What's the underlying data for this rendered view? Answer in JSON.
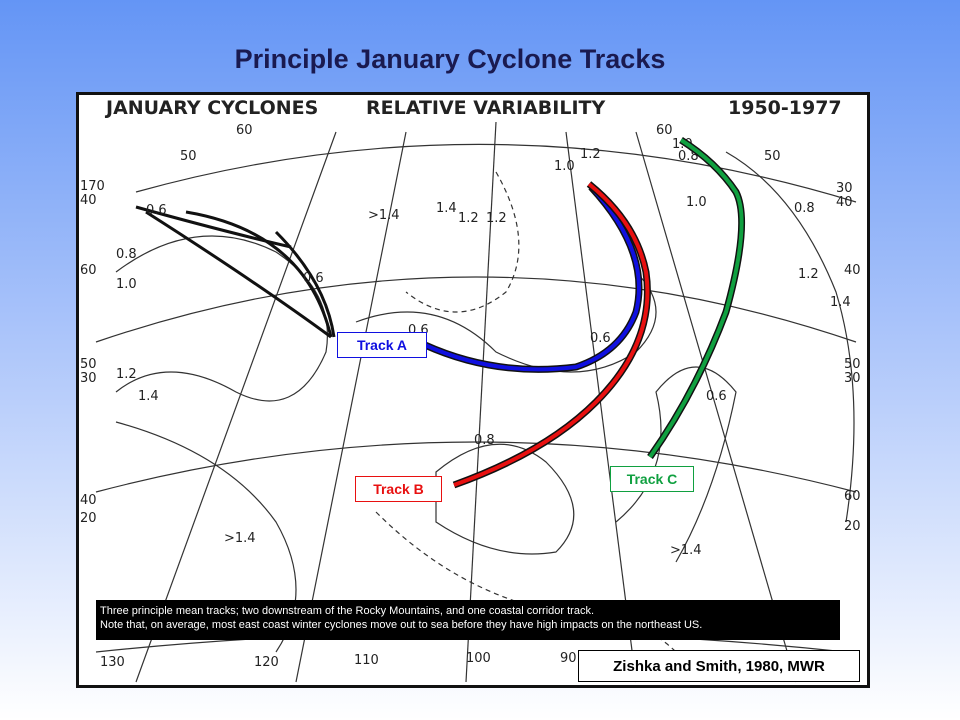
{
  "title": "Principle January Cyclone Tracks",
  "map": {
    "header": [
      "JANUARY CYCLONES",
      "RELATIVE VARIABILITY",
      "1950-1977"
    ],
    "labels": [
      "130",
      "120",
      "110",
      "100",
      "90",
      "170",
      "40",
      "60",
      "50",
      "30",
      "40",
      "20",
      "30",
      "40",
      "40",
      "50",
      "30",
      "60",
      "20",
      ">1.4",
      ">1.4",
      ">1.4",
      "0.6",
      "0.6",
      "0.6",
      "0.6",
      "0.6",
      "0.8",
      "0.8",
      "0.8",
      "1.0",
      "1.2",
      "1.4",
      "1.2",
      "1.4",
      "1.0",
      "1.2",
      "50",
      "50",
      "60",
      "60",
      "1.2",
      "1.2",
      "1.0",
      "1.4",
      "1.0",
      "0.8"
    ]
  },
  "tracks": [
    {
      "label": "Track A",
      "color": "#1010e0"
    },
    {
      "label": "Track B",
      "color": "#e81010"
    },
    {
      "label": "Track C",
      "color": "#10a040"
    }
  ],
  "caption": [
    "Three principle mean tracks; two downstream of the Rocky Mountains, and one coastal corridor track.",
    "Note that, on average, most east coast winter cyclones move out to sea before they have high impacts on the northeast US."
  ],
  "citation": "Zishka and Smith, 1980, MWR"
}
